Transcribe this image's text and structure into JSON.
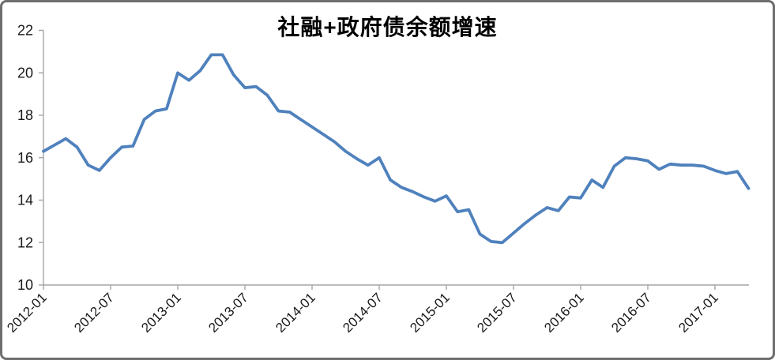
{
  "title": "社融+政府债余额增速",
  "chart_data": {
    "type": "line",
    "title": "社融+政府债余额增速",
    "xlabel": "",
    "ylabel": "",
    "ylim": [
      10,
      22
    ],
    "yticks": [
      10,
      12,
      14,
      16,
      18,
      20,
      22
    ],
    "xtick_every": 6,
    "xtick_labels": [
      "2012-01",
      "2012-07",
      "2013-01",
      "2013-07",
      "2014-01",
      "2014-07",
      "2015-01",
      "2015-07",
      "2016-01",
      "2016-07",
      "2017-01"
    ],
    "grid": false,
    "legend_position": "none",
    "line_color": "#4F81BD",
    "axis_color": "#a6a6a6",
    "label_color": "#1a1a1a",
    "x": [
      "2012-01",
      "2012-02",
      "2012-03",
      "2012-04",
      "2012-05",
      "2012-06",
      "2012-07",
      "2012-08",
      "2012-09",
      "2012-10",
      "2012-11",
      "2012-12",
      "2013-01",
      "2013-02",
      "2013-03",
      "2013-04",
      "2013-05",
      "2013-06",
      "2013-07",
      "2013-08",
      "2013-09",
      "2013-10",
      "2013-11",
      "2013-12",
      "2014-01",
      "2014-02",
      "2014-03",
      "2014-04",
      "2014-05",
      "2014-06",
      "2014-07",
      "2014-08",
      "2014-09",
      "2014-10",
      "2014-11",
      "2014-12",
      "2015-01",
      "2015-02",
      "2015-03",
      "2015-04",
      "2015-05",
      "2015-06",
      "2015-07",
      "2015-08",
      "2015-09",
      "2015-10",
      "2015-11",
      "2015-12",
      "2016-01",
      "2016-02",
      "2016-03",
      "2016-04",
      "2016-05",
      "2016-06",
      "2016-07",
      "2016-08",
      "2016-09",
      "2016-10",
      "2016-11",
      "2016-12",
      "2017-01",
      "2017-02",
      "2017-03",
      "2017-04"
    ],
    "values": [
      16.3,
      16.6,
      16.9,
      16.5,
      15.65,
      15.4,
      16.0,
      16.5,
      16.55,
      17.8,
      18.2,
      18.3,
      20.0,
      19.65,
      20.1,
      20.85,
      20.85,
      19.9,
      19.3,
      19.35,
      18.95,
      18.2,
      18.15,
      17.8,
      17.45,
      17.1,
      16.75,
      16.3,
      15.95,
      15.65,
      16.0,
      14.95,
      14.6,
      14.4,
      14.15,
      13.95,
      14.2,
      13.45,
      13.55,
      12.4,
      12.05,
      12.0,
      12.45,
      12.9,
      13.3,
      13.65,
      13.5,
      14.15,
      14.1,
      14.95,
      14.6,
      15.6,
      16.0,
      15.95,
      15.85,
      15.45,
      15.7,
      15.65,
      15.65,
      15.6,
      15.4,
      15.25,
      15.35,
      14.55
    ]
  }
}
